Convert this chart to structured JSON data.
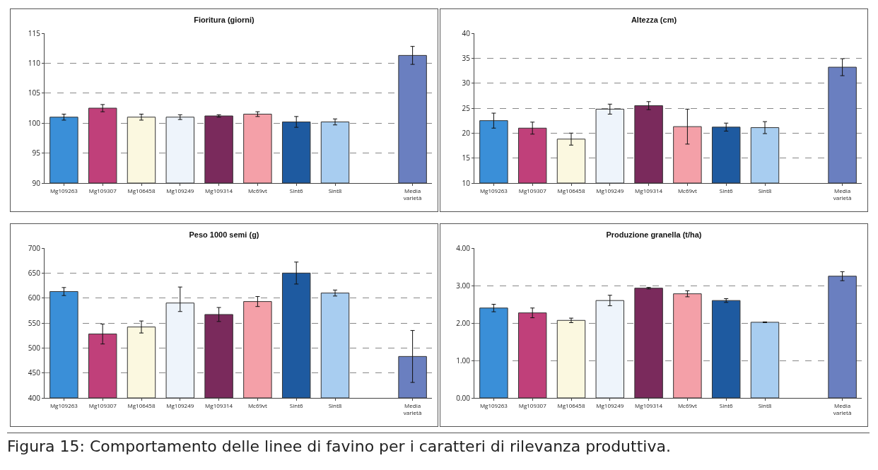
{
  "chart_data": [
    {
      "type": "bar",
      "title": "Fioritura (giorni)",
      "categories": [
        "Mg109263",
        "Mg109307",
        "Mg106458",
        "Mg109249",
        "Mg109314",
        "Mc69vt",
        "Sint6",
        "Sint8",
        null,
        "Media varietà"
      ],
      "values": [
        101.0,
        102.5,
        101.0,
        101.0,
        101.2,
        101.5,
        100.2,
        100.2,
        null,
        111.3
      ],
      "errors": [
        0.5,
        0.6,
        0.5,
        0.4,
        0.2,
        0.4,
        0.9,
        0.5,
        null,
        1.5
      ],
      "colors": [
        "#3a8fd8",
        "#c0407a",
        "#fbf8e0",
        "#eef4fb",
        "#7a2a5c",
        "#f4a0a8",
        "#1e5aa0",
        "#a8cdf0",
        "#ffffff",
        "#6a7fc0"
      ],
      "ylim": [
        90,
        115
      ],
      "yticks": [
        90,
        95,
        100,
        105,
        110,
        115
      ],
      "grid": "y"
    },
    {
      "type": "bar",
      "title": "Altezza (cm)",
      "categories": [
        "Mg109263",
        "Mg109307",
        "Mg106458",
        "Mg109249",
        "Mg109314",
        "Mc69vt",
        "Sint6",
        "Sint8",
        null,
        "Media varietà"
      ],
      "values": [
        22.5,
        21.0,
        18.8,
        24.8,
        25.5,
        21.3,
        21.2,
        21.1,
        null,
        33.2
      ],
      "errors": [
        1.5,
        1.2,
        1.2,
        1.0,
        0.8,
        3.5,
        0.8,
        1.2,
        null,
        1.7
      ],
      "colors": [
        "#3a8fd8",
        "#c0407a",
        "#fbf8e0",
        "#eef4fb",
        "#7a2a5c",
        "#f4a0a8",
        "#1e5aa0",
        "#a8cdf0",
        "#ffffff",
        "#6a7fc0"
      ],
      "ylim": [
        10,
        40
      ],
      "yticks": [
        10,
        15,
        20,
        25,
        30,
        35,
        40
      ],
      "grid": "y"
    },
    {
      "type": "bar",
      "title": "Peso 1000 semi (g)",
      "categories": [
        "Mg109263",
        "Mg109307",
        "Mg106458",
        "Mg109249",
        "Mg109314",
        "Mc69vt",
        "Sint6",
        "Sint8",
        null,
        "Media varietà"
      ],
      "values": [
        613,
        528,
        542,
        590,
        567,
        593,
        650,
        610,
        null,
        483
      ],
      "errors": [
        8,
        20,
        12,
        [
          573,
          622
        ],
        14,
        10,
        22,
        6,
        null,
        52
      ],
      "colors": [
        "#3a8fd8",
        "#c0407a",
        "#fbf8e0",
        "#eef4fb",
        "#7a2a5c",
        "#f4a0a8",
        "#1e5aa0",
        "#a8cdf0",
        "#ffffff",
        "#6a7fc0"
      ],
      "ylim": [
        400,
        700
      ],
      "yticks": [
        400,
        450,
        500,
        550,
        600,
        650,
        700
      ],
      "grid": "y"
    },
    {
      "type": "bar",
      "title": "Produzione granella (t/ha)",
      "categories": [
        "Mg109263",
        "Mg109307",
        "Mg106458",
        "Mg109249",
        "Mg109314",
        "Mc69vt",
        "Sint6",
        "Sint8",
        null,
        "Media varietà"
      ],
      "values": [
        2.4,
        2.27,
        2.07,
        2.6,
        2.93,
        2.78,
        2.6,
        2.02,
        null,
        3.25
      ],
      "errors": [
        0.1,
        0.13,
        0.06,
        0.14,
        0.02,
        0.08,
        0.05,
        0.01,
        null,
        0.12
      ],
      "colors": [
        "#3a8fd8",
        "#c0407a",
        "#fbf8e0",
        "#eef4fb",
        "#7a2a5c",
        "#f4a0a8",
        "#1e5aa0",
        "#a8cdf0",
        "#ffffff",
        "#6a7fc0"
      ],
      "ylim": [
        0,
        4
      ],
      "yticks": [
        {
          "value": 0,
          "label": "0.00"
        },
        {
          "value": 1,
          "label": "1.00"
        },
        {
          "value": 2,
          "label": "2.00"
        },
        {
          "value": 3,
          "label": "3.00"
        },
        {
          "value": 4,
          "label": "4.00"
        }
      ],
      "grid": "y",
      "annotations": [
        "Figura 15: Comportamento delle linee di favino per i caratteri di rilevanza produttiva."
      ]
    }
  ]
}
